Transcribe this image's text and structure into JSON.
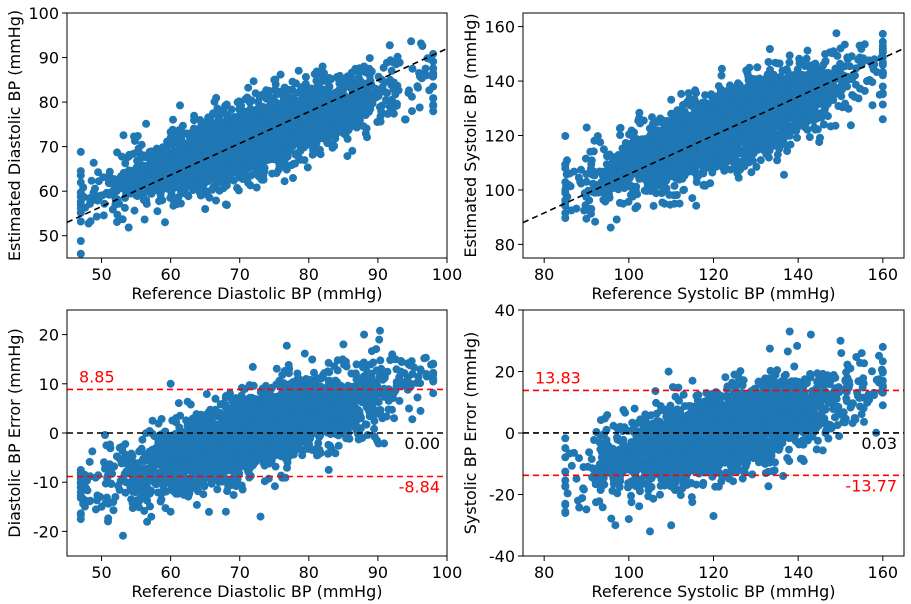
{
  "chart_data": [
    {
      "type": "scatter",
      "xlabel": "Reference Diastolic BP (mmHg)",
      "ylabel": "Estimated Diastolic BP (mmHg)",
      "xlim": [
        45,
        100
      ],
      "ylim": [
        45,
        100
      ],
      "xticks": [
        50,
        60,
        70,
        80,
        90,
        100
      ],
      "yticks": [
        50,
        60,
        70,
        80,
        90,
        100
      ],
      "point_color": "#1f77b4",
      "cloud": {
        "center": [
          72,
          72
        ],
        "slope": 0.55,
        "spread": 4.0,
        "xrange": [
          47,
          98
        ],
        "count": 2600
      },
      "outliers": [
        [
          47,
          64.5
        ],
        [
          52,
          57
        ],
        [
          56,
          60
        ],
        [
          65,
          56
        ],
        [
          68,
          57
        ],
        [
          88,
          88
        ],
        [
          95,
          87.5
        ],
        [
          97,
          86
        ],
        [
          92,
          87
        ],
        [
          60,
          72
        ],
        [
          75,
          85
        ],
        [
          82,
          88
        ]
      ],
      "reference_lines": [
        {
          "kind": "identity",
          "from": [
            45,
            53
          ],
          "to": [
            100,
            92
          ],
          "color": "#000000",
          "dash": true
        }
      ]
    },
    {
      "type": "scatter",
      "xlabel": "Reference Systolic BP (mmHg)",
      "ylabel": "Estimated Systolic BP (mmHg)",
      "xlim": [
        75,
        165
      ],
      "ylim": [
        75,
        165
      ],
      "xticks": [
        80,
        100,
        120,
        140,
        160
      ],
      "yticks": [
        80,
        100,
        120,
        140,
        160
      ],
      "point_color": "#1f77b4",
      "cloud": {
        "center": [
          122,
          122
        ],
        "slope": 0.6,
        "spread": 7.0,
        "xrange": [
          85,
          160
        ],
        "count": 2600
      },
      "outliers": [
        [
          85,
          108
        ],
        [
          86,
          106
        ],
        [
          90,
          103
        ],
        [
          102,
          94
        ],
        [
          112,
          95
        ],
        [
          115,
          97
        ],
        [
          128,
          143
        ],
        [
          133,
          147
        ],
        [
          150,
          152
        ],
        [
          158,
          148
        ],
        [
          160,
          138
        ],
        [
          160,
          143
        ]
      ],
      "reference_lines": [
        {
          "kind": "identity",
          "from": [
            75,
            88
          ],
          "to": [
            165,
            152
          ],
          "color": "#000000",
          "dash": true
        }
      ]
    },
    {
      "type": "scatter",
      "xlabel": "Reference Diastolic BP (mmHg)",
      "ylabel": "Diastolic BP Error (mmHg)",
      "xlim": [
        45,
        100
      ],
      "ylim": [
        -25,
        25
      ],
      "xticks": [
        50,
        60,
        70,
        80,
        90,
        100
      ],
      "yticks": [
        -20,
        -10,
        0,
        10,
        20
      ],
      "point_color": "#1f77b4",
      "cloud": {
        "center": [
          72,
          0
        ],
        "slope": 0.45,
        "spread": 4.0,
        "xrange": [
          47,
          98
        ],
        "count": 2600
      },
      "outliers": [
        [
          47,
          -17.5
        ],
        [
          50,
          -15
        ],
        [
          52,
          -13
        ],
        [
          60,
          -16
        ],
        [
          68,
          -16
        ],
        [
          73,
          -17
        ],
        [
          85,
          18
        ],
        [
          88,
          20
        ],
        [
          92,
          15
        ],
        [
          95,
          12
        ],
        [
          97,
          12
        ],
        [
          60,
          10
        ]
      ],
      "reference_lines": [
        {
          "kind": "mean",
          "value": 0.0,
          "label": "0.00",
          "color": "#000000"
        },
        {
          "kind": "upper_loa",
          "value": 8.85,
          "label": "8.85",
          "color": "#ff0000"
        },
        {
          "kind": "lower_loa",
          "value": -8.84,
          "label": "-8.84",
          "color": "#ff0000"
        }
      ]
    },
    {
      "type": "scatter",
      "xlabel": "Reference Systolic BP (mmHg)",
      "ylabel": "Systolic BP Error (mmHg)",
      "xlim": [
        75,
        165
      ],
      "ylim": [
        -40,
        40
      ],
      "xticks": [
        80,
        100,
        120,
        140,
        160
      ],
      "yticks": [
        -40,
        -20,
        0,
        20,
        40
      ],
      "point_color": "#1f77b4",
      "cloud": {
        "center": [
          122,
          0
        ],
        "slope": 0.4,
        "spread": 6.5,
        "xrange": [
          85,
          160
        ],
        "count": 2600
      },
      "outliers": [
        [
          85,
          -26
        ],
        [
          85,
          -23
        ],
        [
          88,
          -22
        ],
        [
          100,
          -28
        ],
        [
          105,
          -32
        ],
        [
          110,
          -30
        ],
        [
          120,
          -27
        ],
        [
          138,
          33
        ],
        [
          143,
          32
        ],
        [
          150,
          30
        ],
        [
          155,
          26
        ],
        [
          160,
          28
        ]
      ],
      "reference_lines": [
        {
          "kind": "mean",
          "value": 0.03,
          "label": "0.03",
          "color": "#000000"
        },
        {
          "kind": "upper_loa",
          "value": 13.83,
          "label": "13.83",
          "color": "#ff0000"
        },
        {
          "kind": "lower_loa",
          "value": -13.77,
          "label": "-13.77",
          "color": "#ff0000"
        }
      ]
    }
  ]
}
